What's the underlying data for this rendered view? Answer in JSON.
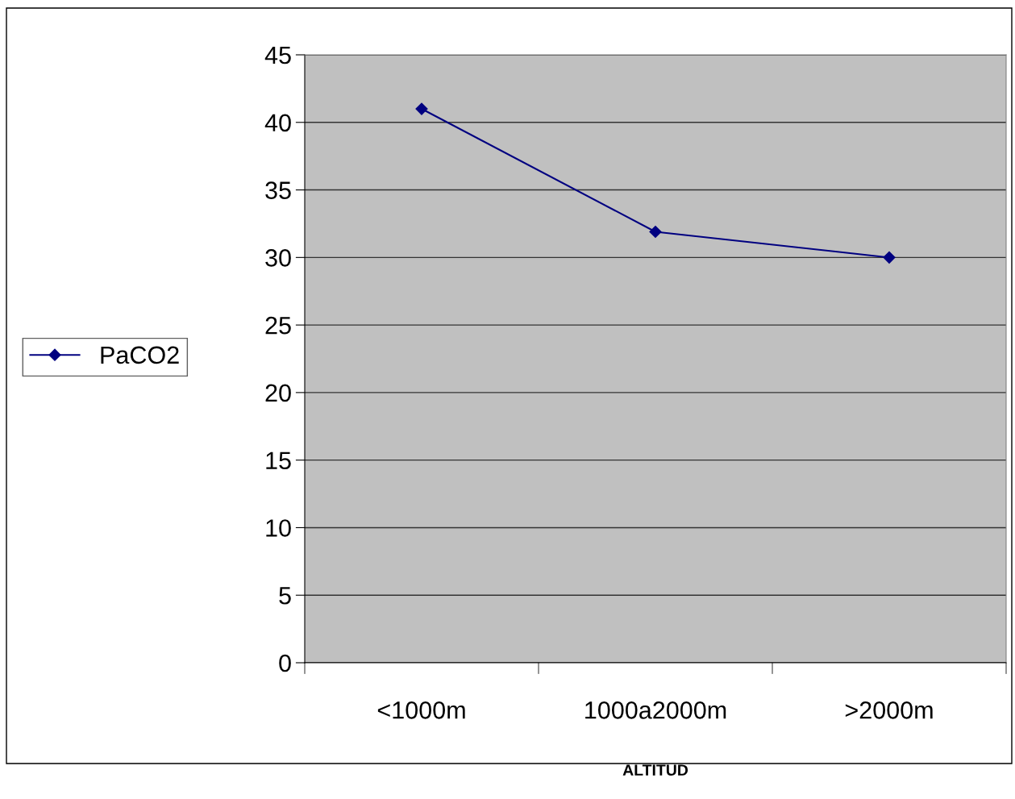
{
  "chart_data": {
    "type": "line",
    "xlabel": "ALTITUD",
    "categories": [
      "<1000m",
      "1000a2000m",
      ">2000m"
    ],
    "series": [
      {
        "name": "PaCO2",
        "color": "#000080",
        "values": [
          41,
          31.9,
          30
        ]
      }
    ],
    "ylim": [
      0,
      45
    ],
    "yticks": [
      0,
      5,
      10,
      15,
      20,
      25,
      30,
      35,
      40,
      45
    ],
    "grid": "y",
    "legend": "left",
    "marker": "diamond",
    "line_style": "solid"
  }
}
